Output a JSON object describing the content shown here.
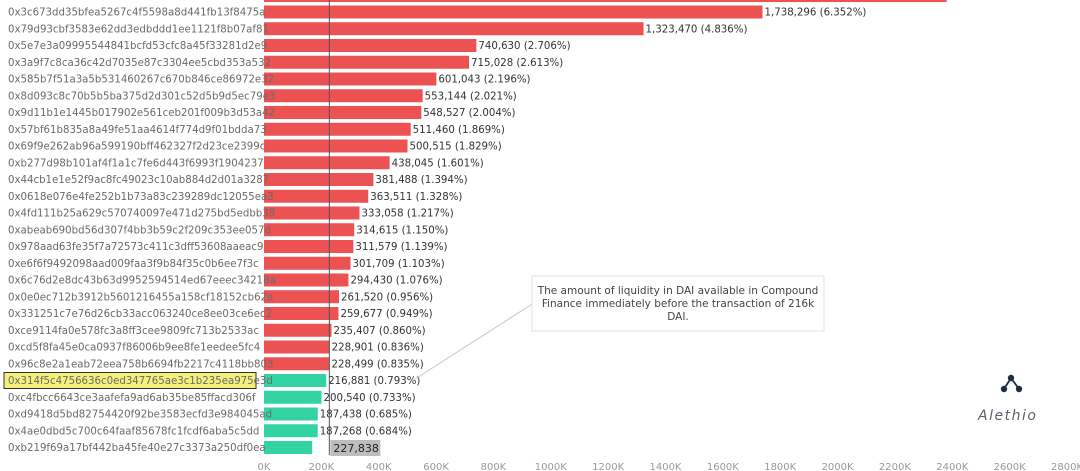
{
  "chart_data": {
    "type": "bar",
    "orientation": "horizontal",
    "xlim": [
      0,
      2800000
    ],
    "x_ticks": [
      "0K",
      "200K",
      "400K",
      "600K",
      "800K",
      "1000K",
      "1200K",
      "1400K",
      "1600K",
      "1800K",
      "2000K",
      "2200K",
      "2400K",
      "2600K",
      "2800K"
    ],
    "x_tick_values": [
      0,
      200000,
      400000,
      600000,
      800000,
      1000000,
      1200000,
      1400000,
      1600000,
      1800000,
      2000000,
      2200000,
      2400000,
      2600000,
      2800000
    ],
    "reference_line": {
      "value": 227838,
      "label": "227,838"
    },
    "annotation": {
      "lines": [
        "The amount of liquidity in DAI available in Compound",
        "Finance immediately before the transaction of 216k",
        "DAI."
      ]
    },
    "highlight_color": "#f4f07a",
    "colors": {
      "red": "#ec5252",
      "green": "#34d3a3"
    },
    "bars": [
      {
        "label": "0x3c673dd35bfea5267c4f5598a8d441fb13f8475a",
        "value": 1738296,
        "value_label": "1,738,296 (6.352%)",
        "color": "red"
      },
      {
        "label": "0x79d93cbf3583e62dd3edbddd1ee1121f8b07af81",
        "value": 1323470,
        "value_label": "1,323,470 (4.836%)",
        "color": "red"
      },
      {
        "label": "0x5e7e3a09995544841bcfd53cfc8a45f33281d2e9",
        "value": 740630,
        "value_label": "740,630 (2.706%)",
        "color": "red"
      },
      {
        "label": "0x3a9f7c8ca36c42d7035e87c3304ee5cbd353a532",
        "value": 715028,
        "value_label": "715,028 (2.613%)",
        "color": "red"
      },
      {
        "label": "0x585b7f51a3a5b531460267c670b846ce86972e32",
        "value": 601043,
        "value_label": "601,043 (2.196%)",
        "color": "red"
      },
      {
        "label": "0x8d093c8c70b5b5ba375d2d301c52d5b9d5ec79e3",
        "value": 553144,
        "value_label": "553,144 (2.021%)",
        "color": "red"
      },
      {
        "label": "0x9d11b1e1445b017902e561ceb201f009b3d53a42",
        "value": 548527,
        "value_label": "548,527 (2.004%)",
        "color": "red"
      },
      {
        "label": "0x57bf61b835a8a49fe51aa4614f774d9f01bdda73",
        "value": 511460,
        "value_label": "511,460 (1.869%)",
        "color": "red"
      },
      {
        "label": "0x69f9e262ab96a599190bff462327f2d23ce2399c",
        "value": 500515,
        "value_label": "500,515 (1.829%)",
        "color": "red"
      },
      {
        "label": "0xb277d98b101af4f1a1c7fe6d443f6993f1904237",
        "value": 438045,
        "value_label": "438,045 (1.601%)",
        "color": "red"
      },
      {
        "label": "0x44cb1e1e52f9ac8fc49023c10ab884d2d01a3287",
        "value": 381488,
        "value_label": "381,488 (1.394%)",
        "color": "red"
      },
      {
        "label": "0x0618e076e4fe252b1b73a83c239289dc12055ea3",
        "value": 363511,
        "value_label": "363,511 (1.328%)",
        "color": "red"
      },
      {
        "label": "0x4fd111b25a629c570740097e471d275bd5edbb38",
        "value": 333058,
        "value_label": "333,058 (1.217%)",
        "color": "red"
      },
      {
        "label": "0xabeab690bd56d307f4bb3b59c2f209c353ee057d",
        "value": 314615,
        "value_label": "314,615 (1.150%)",
        "color": "red"
      },
      {
        "label": "0x978aad63fe35f7a72573c411c3dff53608aaeac9",
        "value": 311579,
        "value_label": "311,579 (1.139%)",
        "color": "red"
      },
      {
        "label": "0xe6f6f9492098aad009faa3f9b84f35c0b6ee7f3c",
        "value": 301709,
        "value_label": "301,709 (1.103%)",
        "color": "red"
      },
      {
        "label": "0x6c76d2e8dc43b63d9952594514ed67eeec34218a",
        "value": 294430,
        "value_label": "294,430 (1.076%)",
        "color": "red"
      },
      {
        "label": "0x0e0ec712b3912b5601216455a158cf18152cb62a",
        "value": 261520,
        "value_label": "261,520 (0.956%)",
        "color": "red"
      },
      {
        "label": "0x331251c7e76d26cb33acc063240ce8ee03ce6ec2",
        "value": 259677,
        "value_label": "259,677 (0.949%)",
        "color": "red"
      },
      {
        "label": "0xce9114fa0e578fc3a8ff3cee9809fc713b2533ac",
        "value": 235407,
        "value_label": "235,407 (0.860%)",
        "color": "red"
      },
      {
        "label": "0xcd5f8fa45e0ca0937f86006b9ee8fe1eedee5fc4",
        "value": 228901,
        "value_label": "228,901 (0.836%)",
        "color": "red"
      },
      {
        "label": "0x96c8e2a1eab72eea758b6694fb2217c4118bb803",
        "value": 228499,
        "value_label": "228,499 (0.835%)",
        "color": "red"
      },
      {
        "label": "0x314f5c4756636c0ed347765ae3c1b235ea975e3d",
        "value": 216881,
        "value_label": "216,881 (0.793%)",
        "color": "green",
        "highlighted": true
      },
      {
        "label": "0xc4fbcc6643ce3aafefa9ad6ab35be85ffacd306f",
        "value": 200540,
        "value_label": "200,540 (0.733%)",
        "color": "green"
      },
      {
        "label": "0xd9418d5bd82754420f92be3583ecfd3e984045ad",
        "value": 187438,
        "value_label": "187,438 (0.685%)",
        "color": "green"
      },
      {
        "label": "0x4ae0dbd5c700c64faaf85678fc1fcdf6aba5c5dd",
        "value": 187268,
        "value_label": "187,268 (0.684%)",
        "color": "green"
      },
      {
        "label": "0xb219f69a17bf442ba45fe40e27c3373a250df0ea",
        "value": 168000,
        "value_label": "",
        "color": "green"
      }
    ],
    "cut_off_top_bar": {
      "value": 2380000,
      "color": "red"
    }
  },
  "brand": {
    "name": "Alethio",
    "icon": "alethio-node-logo-icon"
  }
}
